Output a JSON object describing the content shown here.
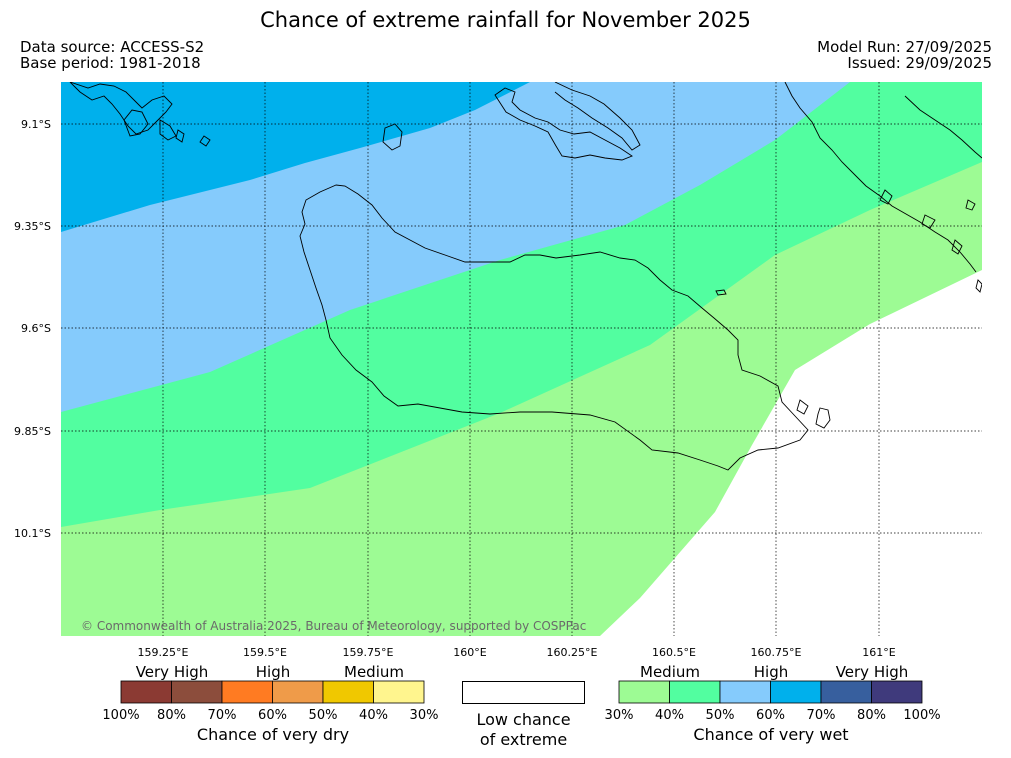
{
  "title": "Chance of extreme rainfall for November 2025",
  "meta": {
    "data_source": "Data source: ACCESS-S2",
    "base_period": "Base period: 1981-2018",
    "model_run": "Model Run: 27/09/2025",
    "issued": "Issued: 29/09/2025"
  },
  "map": {
    "lat_labels": [
      "9.1°S",
      "9.35°S",
      "9.6°S",
      "9.85°S",
      "10.1°S"
    ],
    "lon_labels": [
      "159.25°E",
      "159.5°E",
      "159.75°E",
      "160°E",
      "160.25°E",
      "160.5°E",
      "160.75°E",
      "161°E"
    ],
    "copyright": "© Commonwealth of Australia 2025, Bureau of Meteorology, supported by COSPPac",
    "zone_colors": {
      "very_wet_70_80": "#00b0ec",
      "wet_60_70": "#85cbfc",
      "wet_40_50": "#52fea0",
      "wet_30_40": "#9dfb94",
      "low": "#ffffff"
    }
  },
  "legend": {
    "dry": {
      "labels": [
        "Very High",
        "High",
        "Medium"
      ],
      "colors": [
        "#8b3a33",
        "#8c4d3c",
        "#ff7b22",
        "#ef9b49",
        "#f0c800",
        "#fff58e"
      ],
      "ticks": [
        "100%",
        "80%",
        "70%",
        "60%",
        "50%",
        "40%",
        "30%"
      ],
      "caption": "Chance of very dry"
    },
    "low": {
      "line1": "Low chance",
      "line2": "of extreme"
    },
    "wet": {
      "labels": [
        "Medium",
        "High",
        "Very High"
      ],
      "colors": [
        "#9dfb94",
        "#52fea0",
        "#85cbfc",
        "#00b0ec",
        "#375f9e",
        "#3f3a7c"
      ],
      "ticks": [
        "30%",
        "40%",
        "50%",
        "60%",
        "70%",
        "80%",
        "100%"
      ],
      "caption": "Chance of very wet"
    }
  }
}
